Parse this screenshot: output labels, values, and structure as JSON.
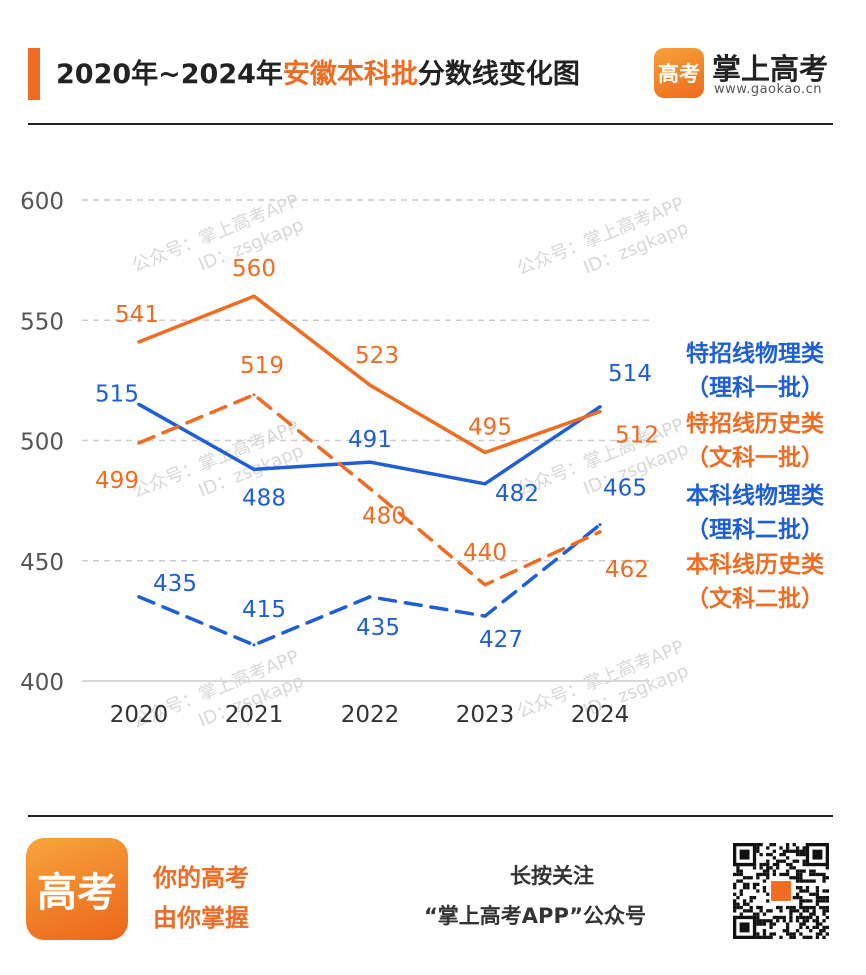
{
  "header": {
    "title_prefix": "2020年~2024年",
    "title_highlight": "安徽本科批",
    "title_suffix": "分数线变化图",
    "brand_logo_text": "高考",
    "brand_name": "掌上高考",
    "brand_url": "www.gaokao.cn"
  },
  "watermark": {
    "line1": "公众号：掌上高考APP",
    "line2": "ID：zsgkapp"
  },
  "legend": [
    {
      "line1": "特招线物理类",
      "line2": "（理科一批）",
      "color": "#1f5fd6"
    },
    {
      "line1": "特招线历史类",
      "line2": "（文科一批）",
      "color": "#ef6c22"
    },
    {
      "line1": "本科线物理类",
      "line2": "（理科二批）",
      "color": "#1f5fd6"
    },
    {
      "line1": "本科线历史类",
      "line2": "（文科二批）",
      "color": "#ef6c22"
    }
  ],
  "chart_data": {
    "type": "line",
    "x": [
      "2020",
      "2021",
      "2022",
      "2023",
      "2024"
    ],
    "yticks": [
      "600",
      "550",
      "500",
      "450",
      "400"
    ],
    "ylim": [
      400,
      600
    ],
    "grid": true,
    "series": [
      {
        "values": [
          515,
          488,
          491,
          482,
          514
        ],
        "labels": [
          "515",
          "488",
          "491",
          "482",
          "514"
        ],
        "color": "#1f5fd6",
        "style": "solid"
      },
      {
        "values": [
          541,
          560,
          523,
          495,
          512
        ],
        "labels": [
          "541",
          "560",
          "523",
          "495",
          "512"
        ],
        "color": "#ef6c22",
        "style": "solid"
      },
      {
        "values": [
          435,
          415,
          435,
          427,
          465
        ],
        "labels": [
          "435",
          "415",
          "435",
          "427",
          "465"
        ],
        "color": "#1f5fd6",
        "style": "dashed"
      },
      {
        "values": [
          499,
          519,
          480,
          440,
          462
        ],
        "labels": [
          "499",
          "519",
          "480",
          "440",
          "462"
        ],
        "color": "#ef6c22",
        "style": "dashed"
      }
    ]
  },
  "footer": {
    "logo_text": "高考",
    "slogan1": "你的高考",
    "slogan2": "由你掌握",
    "follow1": "长按关注",
    "follow2": "“掌上高考APP”公众号"
  }
}
